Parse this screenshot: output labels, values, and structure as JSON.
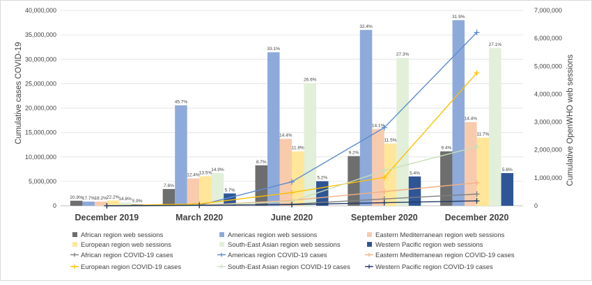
{
  "chart_data": {
    "type": "bar",
    "categories": [
      "December 2019",
      "March 2020",
      "June 2020",
      "September 2020",
      "December 2020"
    ],
    "ylabel": "Cumulative cases COVID-19",
    "y2label": "Cumulative OpenWHO web sessions",
    "ylim": [
      0,
      40000000
    ],
    "y2lim": [
      0,
      7000000
    ],
    "yticks": [
      "0",
      "5,000,000",
      "10,000,000",
      "15,000,000",
      "20,000,000",
      "25,000,000",
      "30,000,000",
      "35,000,000",
      "40,000,000"
    ],
    "y2ticks": [
      "0",
      "1,000,000",
      "2,000,000",
      "3,000,000",
      "4,000,000",
      "5,000,000",
      "6,000,000",
      "7,000,000"
    ],
    "bar_series": [
      {
        "name": "African region web sessions",
        "color": "#6e6e6e",
        "values": [
          180000,
          600000,
          1450000,
          1780000,
          1950000
        ],
        "labels": [
          "20.9%",
          "7.6%",
          "8.7%",
          "9.2%",
          "9.4%"
        ]
      },
      {
        "name": "Americas region web sessions",
        "color": "#8eaadb",
        "values": [
          150000,
          3600000,
          5500000,
          6300000,
          6650000
        ],
        "labels": [
          "17.7%",
          "45.7%",
          "33.1%",
          "32.4%",
          "31.9%"
        ]
      },
      {
        "name": "Eastern Mediterranean region web sessions",
        "color": "#f8cbad",
        "values": [
          150000,
          980000,
          2400000,
          2750000,
          3000000
        ],
        "labels": [
          "18.2%",
          "12.4%",
          "14.4%",
          "14.1%",
          "14.4%"
        ]
      },
      {
        "name": "European region web sessions",
        "color": "#ffe699",
        "values": [
          190000,
          1060000,
          1950000,
          2230000,
          2440000
        ],
        "labels": [
          "22.2%",
          "13.5%",
          "11.8%",
          "11.5%",
          "11.7%"
        ]
      },
      {
        "name": "South-East Asian region web sessions",
        "color": "#e2efd9",
        "values": [
          120000,
          1170000,
          4400000,
          5300000,
          5650000
        ],
        "labels": [
          "14.8%",
          "14.9%",
          "26.6%",
          "27.3%",
          "27.1%"
        ]
      },
      {
        "name": "Western Pacific region web sessions",
        "color": "#2f5597",
        "values": [
          50000,
          440000,
          880000,
          1050000,
          1170000
        ],
        "labels": [
          "5.9%",
          "5.7%",
          "5.2%",
          "5.4%",
          "5.6%"
        ]
      }
    ],
    "line_series": [
      {
        "name": "African region COVID-19 cases",
        "color": "#7f7f7f",
        "values": [
          0,
          5000,
          330000,
          1400000,
          2400000
        ]
      },
      {
        "name": "Americas region COVID-19 cases",
        "color": "#5b8bd0",
        "values": [
          0,
          100000,
          4900000,
          16000000,
          35500000
        ]
      },
      {
        "name": "Eastern Mediterranean region COVID-19 cases",
        "color": "#f4b183",
        "values": [
          0,
          60000,
          1100000,
          2900000,
          4700000
        ]
      },
      {
        "name": "European region COVID-19 cases",
        "color": "#ffc000",
        "values": [
          0,
          380000,
          2700000,
          5800000,
          27200000
        ]
      },
      {
        "name": "South-East Asian region COVID-19 cases",
        "color": "#c9dfb9",
        "values": [
          0,
          10000,
          900000,
          7200000,
          12100000
        ]
      },
      {
        "name": "Western Pacific region COVID-19 cases",
        "color": "#203864",
        "values": [
          0,
          100000,
          230000,
          630000,
          1000000
        ]
      }
    ]
  },
  "legend": {
    "items": [
      {
        "label": "African region web sessions",
        "kind": "bar",
        "color": "#6e6e6e"
      },
      {
        "label": "Americas region web sessions",
        "kind": "bar",
        "color": "#8eaadb"
      },
      {
        "label": "Eastern Mediterranean region web sessions",
        "kind": "bar",
        "color": "#f8cbad"
      },
      {
        "label": "European region web sessions",
        "kind": "bar",
        "color": "#ffe699"
      },
      {
        "label": "South-East Asian region web sessions",
        "kind": "bar",
        "color": "#e2efd9"
      },
      {
        "label": "Western Pacific region web sessions",
        "kind": "bar",
        "color": "#2f5597"
      },
      {
        "label": "African region COVID-19 cases",
        "kind": "line",
        "color": "#7f7f7f"
      },
      {
        "label": "Americas region COVID-19 cases",
        "kind": "line",
        "color": "#5b8bd0"
      },
      {
        "label": "Eastern Mediterranean region COVID-19 cases",
        "kind": "line",
        "color": "#f4b183"
      },
      {
        "label": "European region COVID-19 cases",
        "kind": "line",
        "color": "#ffc000"
      },
      {
        "label": "South-East Asian region COVID-19 cases",
        "kind": "line",
        "color": "#c9dfb9"
      },
      {
        "label": "Western Pacific region COVID-19 cases",
        "kind": "line",
        "color": "#203864"
      }
    ]
  }
}
